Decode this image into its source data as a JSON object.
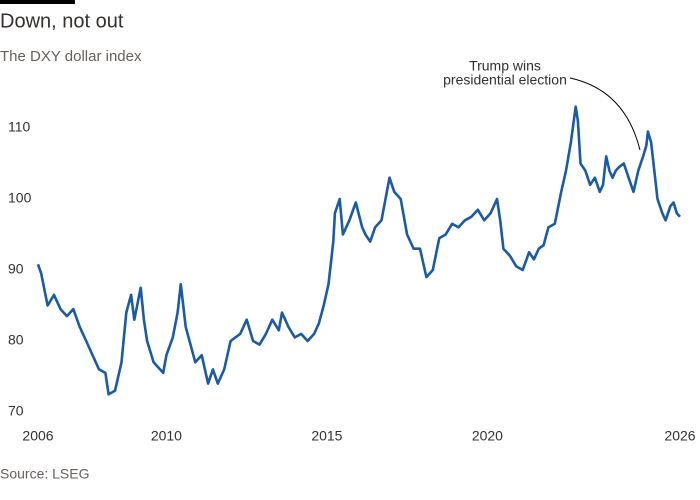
{
  "chart_data": {
    "type": "line",
    "title": "Down, not out",
    "subtitle": "The DXY dollar index",
    "source": "Source: LSEG",
    "annotation": [
      "Trump wins",
      "presidential election"
    ],
    "x": [
      2006.0,
      2006.1,
      2006.3,
      2006.5,
      2006.7,
      2006.9,
      2007.1,
      2007.3,
      2007.5,
      2007.6,
      2007.8,
      2007.9,
      2008.1,
      2008.2,
      2008.4,
      2008.6,
      2008.75,
      2008.9,
      2009.0,
      2009.2,
      2009.3,
      2009.4,
      2009.6,
      2009.9,
      2010.0,
      2010.2,
      2010.35,
      2010.45,
      2010.6,
      2010.9,
      2011.1,
      2011.3,
      2011.45,
      2011.6,
      2011.8,
      2012.0,
      2012.3,
      2012.5,
      2012.7,
      2012.9,
      2013.1,
      2013.3,
      2013.5,
      2013.6,
      2013.8,
      2014.0,
      2014.2,
      2014.4,
      2014.6,
      2014.75,
      2014.9,
      2015.05,
      2015.2,
      2015.25,
      2015.4,
      2015.5,
      2015.7,
      2015.9,
      2016.1,
      2016.2,
      2016.35,
      2016.5,
      2016.7,
      2016.95,
      2017.1,
      2017.3,
      2017.5,
      2017.7,
      2017.9,
      2018.1,
      2018.3,
      2018.5,
      2018.7,
      2018.9,
      2019.1,
      2019.3,
      2019.5,
      2019.7,
      2019.9,
      2020.1,
      2020.2,
      2020.3,
      2020.4,
      2020.5,
      2020.7,
      2020.9,
      2021.1,
      2021.3,
      2021.45,
      2021.6,
      2021.75,
      2021.9,
      2022.1,
      2022.3,
      2022.45,
      2022.6,
      2022.75,
      2022.82,
      2022.9,
      2023.05,
      2023.2,
      2023.35,
      2023.5,
      2023.6,
      2023.7,
      2023.8,
      2023.9,
      2024.0,
      2024.1,
      2024.25,
      2024.4,
      2024.55,
      2024.7,
      2024.85,
      2024.95,
      2025.0,
      2025.1,
      2025.2,
      2025.3,
      2025.45,
      2025.55,
      2025.7,
      2025.8,
      2025.9,
      2026.0
    ],
    "series": [
      {
        "name": "DXY",
        "color": "#1b5aa5",
        "values": [
          90.8,
          89.5,
          85,
          86.5,
          84.5,
          83.5,
          84.5,
          82,
          80,
          79,
          77,
          76,
          75.5,
          72.5,
          73,
          77,
          84,
          86.5,
          83,
          87.5,
          83,
          80,
          77,
          75.5,
          78,
          80.5,
          84,
          88,
          82,
          77,
          78,
          74,
          76,
          74,
          76,
          80,
          81,
          83,
          80,
          79.5,
          81,
          83,
          81.5,
          84,
          82,
          80.5,
          81,
          80,
          81,
          82.5,
          85,
          88,
          94,
          98,
          100,
          95,
          97,
          99.5,
          96,
          95,
          94,
          96,
          97,
          103,
          101,
          100,
          95,
          93,
          93,
          89,
          90,
          94.5,
          95,
          96.5,
          96,
          97,
          97.5,
          98.5,
          97,
          98,
          99,
          100,
          97,
          93,
          92,
          90.5,
          90,
          92.5,
          91.5,
          93,
          93.5,
          96,
          96.5,
          101,
          104,
          108,
          113,
          111,
          105,
          104,
          102,
          103,
          101,
          102,
          106,
          104,
          103,
          104,
          104.5,
          105,
          103,
          101,
          104,
          106,
          107.5,
          109.5,
          108,
          104,
          100,
          98,
          97,
          99,
          99.5,
          98,
          97.5
        ]
      }
    ],
    "xlim": [
      2006,
      2026
    ],
    "xticks": [
      2006,
      2010,
      2015,
      2020,
      2026
    ],
    "ylim": [
      68,
      115
    ],
    "yticks": [
      70,
      80,
      90,
      100,
      110
    ],
    "grid": false
  }
}
